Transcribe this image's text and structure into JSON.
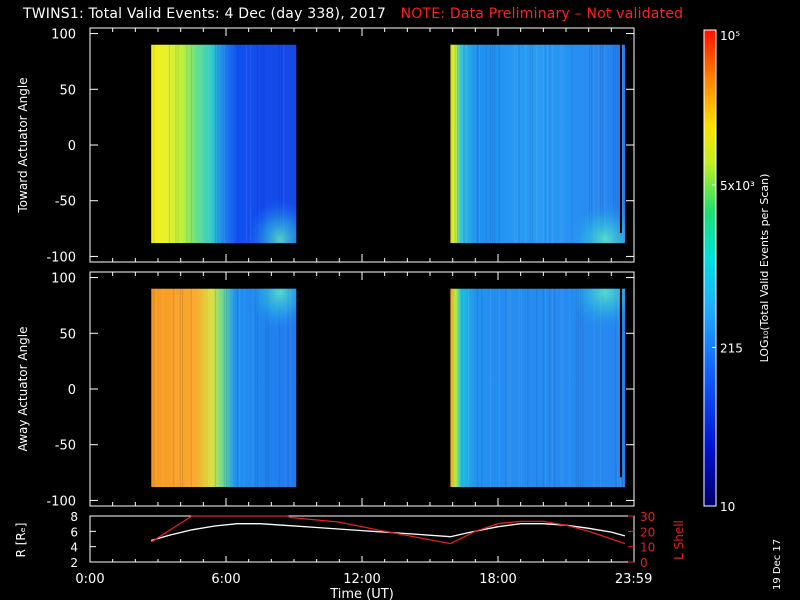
{
  "title": {
    "main": "TWINS1: Total Valid Events:  4 Dec (day 338), 2017",
    "warning": "NOTE: Data Preliminary – Not validated"
  },
  "side_date": "19 Dec 17",
  "colors": {
    "background": "#000000",
    "axes": "#ffffff",
    "warning": "#ff2020",
    "orbit_r": "#ffffff",
    "orbit_lshell": "#e02020"
  },
  "chart_data": [
    {
      "type": "heatmap",
      "panel": "top",
      "ylabel": "Toward Actuator Angle",
      "ylim": [
        -105,
        105
      ],
      "yticks": [
        100,
        50,
        0,
        -50,
        -100
      ],
      "xlim": [
        0,
        24
      ],
      "data_blocks": [
        {
          "start_hr": 2.7,
          "end_hr": 9.1,
          "angle_range": [
            -88,
            90
          ]
        },
        {
          "start_hr": 15.9,
          "end_hr": 23.6,
          "angle_range": [
            -88,
            90
          ]
        }
      ]
    },
    {
      "type": "heatmap",
      "panel": "bottom",
      "ylabel": "Away Actuator Angle",
      "ylim": [
        -105,
        105
      ],
      "yticks": [
        100,
        50,
        0,
        -50,
        -100
      ],
      "xlim": [
        0,
        24
      ],
      "data_blocks": [
        {
          "start_hr": 2.7,
          "end_hr": 9.1,
          "angle_range": [
            -88,
            90
          ]
        },
        {
          "start_hr": 15.9,
          "end_hr": 23.6,
          "angle_range": [
            -88,
            90
          ]
        }
      ]
    },
    {
      "type": "line",
      "panel": "orbit",
      "xlabel": "Time (UT)",
      "xlim": [
        0,
        24
      ],
      "xticks": [
        {
          "v": 0,
          "label": "0:00"
        },
        {
          "v": 6,
          "label": "6:00"
        },
        {
          "v": 12,
          "label": "12:00"
        },
        {
          "v": 18,
          "label": "18:00"
        },
        {
          "v": 23.983,
          "label": "23:59"
        }
      ],
      "left_axis": {
        "label": "R [Rₑ]",
        "ylim": [
          2,
          8
        ],
        "ticks": [
          8,
          6,
          4,
          2
        ]
      },
      "right_axis": {
        "label": "L Shell",
        "ylim": [
          0,
          30
        ],
        "ticks": [
          30,
          20,
          10,
          0
        ]
      },
      "series": [
        {
          "name": "R",
          "axis": "left",
          "x": [
            2.7,
            3.5,
            4.5,
            5.5,
            6.5,
            7.5,
            8.5,
            10,
            12,
            14,
            15.9,
            16.8,
            18,
            19,
            20,
            21,
            22,
            23,
            23.6
          ],
          "y": [
            4.8,
            5.5,
            6.2,
            6.7,
            7.0,
            7.0,
            6.8,
            6.5,
            6.1,
            5.7,
            5.3,
            5.9,
            6.6,
            7.0,
            7.0,
            6.8,
            6.4,
            5.9,
            5.4
          ]
        },
        {
          "name": "L Shell",
          "axis": "right",
          "x": [
            2.7,
            4.5,
            4.75,
            8.7,
            8.85,
            11,
            13,
            15.9,
            17,
            18,
            19,
            20,
            21,
            22,
            23.6
          ],
          "y": [
            13,
            31,
            31,
            31,
            29,
            26,
            20,
            12,
            20,
            25,
            26.5,
            26.5,
            24,
            20,
            12
          ]
        }
      ]
    }
  ],
  "colorbar": {
    "label": "LOG₁₀(Total Valid Events per Scan)",
    "scale": "log",
    "range": [
      10,
      100000
    ],
    "ticks": [
      {
        "v": 10,
        "label": "10"
      },
      {
        "v": 215,
        "label": "215"
      },
      {
        "v": 5000,
        "label": "5x10³"
      },
      {
        "v": 100000,
        "label": "10⁵"
      }
    ]
  }
}
